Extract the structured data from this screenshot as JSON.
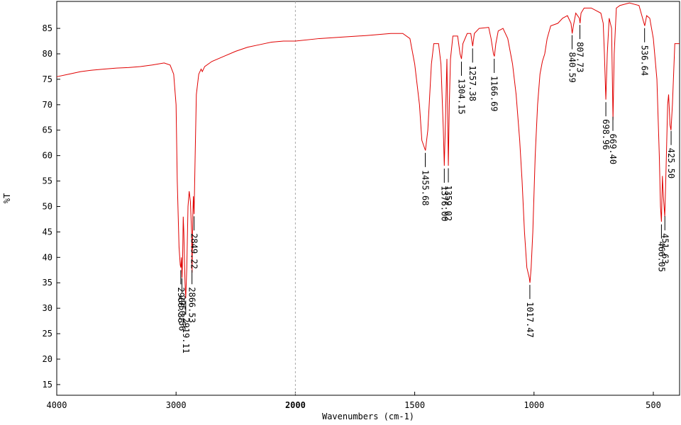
{
  "chart_data": {
    "type": "line",
    "xlabel": "Wavenumbers (cm-1)",
    "ylabel": "%T",
    "xlim": [
      4000,
      390
    ],
    "ylim": [
      12.9,
      90.3
    ],
    "x_scale_break": 2000,
    "xticks": [
      4000,
      3000,
      2000,
      1500,
      1000,
      500
    ],
    "yticks": [
      15,
      20,
      25,
      30,
      35,
      40,
      45,
      50,
      55,
      60,
      65,
      70,
      75,
      80,
      85
    ],
    "series": [
      {
        "color": "#e00000",
        "x": [
          4000,
          3900,
          3800,
          3700,
          3600,
          3500,
          3400,
          3300,
          3200,
          3100,
          3050,
          3020,
          3000,
          2990,
          2975,
          2965,
          2960,
          2955,
          2950,
          2945,
          2940,
          2935,
          2925,
          2919,
          2910,
          2900,
          2890,
          2880,
          2870,
          2866,
          2860,
          2855,
          2849,
          2840,
          2830,
          2810,
          2790,
          2780,
          2760,
          2700,
          2600,
          2500,
          2400,
          2300,
          2200,
          2100,
          2000,
          1900,
          1800,
          1700,
          1600,
          1550,
          1520,
          1500,
          1480,
          1470,
          1455,
          1445,
          1430,
          1420,
          1400,
          1390,
          1380,
          1376,
          1372,
          1365,
          1359,
          1355,
          1350,
          1340,
          1320,
          1310,
          1304,
          1298,
          1280,
          1265,
          1257,
          1250,
          1230,
          1190,
          1180,
          1170,
          1166,
          1160,
          1150,
          1130,
          1110,
          1090,
          1075,
          1060,
          1050,
          1040,
          1030,
          1020,
          1017,
          1012,
          1005,
          995,
          985,
          975,
          965,
          955,
          945,
          930,
          900,
          880,
          860,
          845,
          840,
          835,
          825,
          810,
          807,
          803,
          790,
          760,
          740,
          720,
          710,
          705,
          699,
          693,
          685,
          675,
          669,
          664,
          655,
          640,
          600,
          560,
          545,
          536,
          528,
          515,
          500,
          485,
          475,
          470,
          466,
          462,
          458,
          452,
          448,
          440,
          436,
          430,
          426,
          420,
          410,
          400,
          390
        ],
        "values": [
          75.5,
          76,
          76.5,
          76.8,
          77,
          77.2,
          77.3,
          77.5,
          77.8,
          78.2,
          77.8,
          76,
          70,
          55,
          42,
          38.5,
          38,
          40,
          36,
          40,
          48,
          45,
          35,
          32,
          38,
          50,
          53,
          51,
          45,
          37,
          48,
          52,
          48.5,
          60,
          72,
          76,
          77,
          76.5,
          77.5,
          78.5,
          79.5,
          80.5,
          81.3,
          81.8,
          82.3,
          82.5,
          82.5,
          83,
          83.3,
          83.6,
          84,
          84,
          83,
          78,
          70,
          63,
          61,
          65,
          78,
          82,
          82,
          78,
          65,
          58,
          65,
          79,
          58,
          70,
          79,
          83.5,
          83.5,
          80,
          79,
          82,
          84,
          84,
          81.5,
          84,
          85,
          85.2,
          83,
          80,
          79.5,
          82,
          84.5,
          85,
          83,
          78,
          72,
          63,
          55,
          45,
          38,
          36,
          35,
          38,
          45,
          60,
          70,
          76,
          78.5,
          80,
          83,
          85.5,
          86,
          87,
          87.5,
          86,
          84,
          85.5,
          88,
          87,
          86,
          88,
          89,
          89,
          88.5,
          88,
          86,
          80,
          71,
          80,
          87,
          85,
          67,
          80,
          89,
          89.5,
          90,
          89.5,
          87,
          85.5,
          87.5,
          87,
          83,
          75,
          60,
          50,
          47,
          56,
          52,
          48,
          55,
          70,
          72,
          66,
          65,
          70,
          82,
          82,
          82
        ]
      }
    ],
    "peaks": [
      {
        "value": 2960.36,
        "label": "2960.36"
      },
      {
        "value": 2950.56,
        "label": "2950.56"
      },
      {
        "value": 2919.11,
        "label": "2919.11"
      },
      {
        "value": 2866.53,
        "label": "2866.53"
      },
      {
        "value": 2849.22,
        "label": "2849.22"
      },
      {
        "value": 1455.68,
        "label": "1455.68"
      },
      {
        "value": 1376.0,
        "label": "1376.00"
      },
      {
        "value": 1359.02,
        "label": "1359.02"
      },
      {
        "value": 1304.15,
        "label": "1304.15"
      },
      {
        "value": 1257.38,
        "label": "1257.38"
      },
      {
        "value": 1166.69,
        "label": "1166.69"
      },
      {
        "value": 1017.47,
        "label": "1017.47"
      },
      {
        "value": 840.59,
        "label": "840.59"
      },
      {
        "value": 807.73,
        "label": "807.73"
      },
      {
        "value": 698.96,
        "label": "698.96"
      },
      {
        "value": 669.4,
        "label": "669.40"
      },
      {
        "value": 536.64,
        "label": "536.64"
      },
      {
        "value": 466.05,
        "label": "466.05"
      },
      {
        "value": 451.63,
        "label": "451.63"
      },
      {
        "value": 425.5,
        "label": "425.50"
      }
    ]
  }
}
